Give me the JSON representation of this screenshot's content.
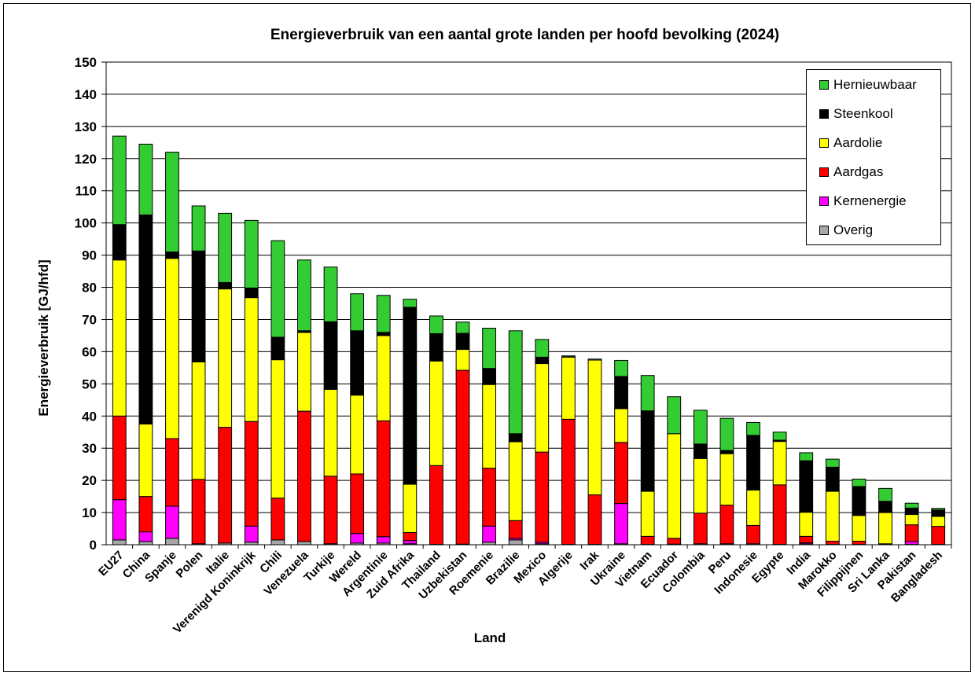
{
  "chart_data": {
    "type": "bar",
    "stacked": true,
    "title": "Energieverbruik van een aantal grote landen per hoofd bevolking (2024)",
    "xlabel": "Land",
    "ylabel": "Energieverbruik  [GJ/hfd]",
    "ylim": [
      0,
      150
    ],
    "yticks": [
      0,
      10,
      20,
      30,
      40,
      50,
      60,
      70,
      80,
      90,
      100,
      110,
      120,
      130,
      140,
      150
    ],
    "grid": "horizontal",
    "legend_position": "top-right",
    "categories": [
      "EU27",
      "China",
      "Spanje",
      "Polen",
      "Italie",
      "Verenigd Koninkrijk",
      "Chili",
      "Venezuela",
      "Turkije",
      "Wereld",
      "Argentinie",
      "Zuid Afrika",
      "Thailand",
      "Uzbekistan",
      "Roemenie",
      "Brazilie",
      "Mexico",
      "Algerije",
      "Irak",
      "Ukraine",
      "Vietnam",
      "Ecuador",
      "Colombia",
      "Peru",
      "Indonesie",
      "Egypte",
      "India",
      "Marokko",
      "Filippijnen",
      "Sri Lanka",
      "Pakistan",
      "Bangladesh"
    ],
    "series": [
      {
        "name": "Overig",
        "color": "#a6a6a6",
        "values": [
          1.5,
          1.0,
          2.0,
          0.3,
          0.5,
          0.8,
          1.5,
          1.0,
          0.3,
          0.5,
          0.5,
          0.3,
          0.1,
          0.2,
          0.8,
          1.5,
          0.3,
          0.1,
          0.1,
          0.3,
          0.1,
          0.2,
          0.3,
          0.3,
          0.3,
          0.1,
          0.3,
          0.1,
          0.1,
          0.1,
          0.1,
          0.1
        ]
      },
      {
        "name": "Kernenergie",
        "color": "#ff00ff",
        "values": [
          12.5,
          3.0,
          10.0,
          0,
          0,
          5.0,
          0,
          0,
          0,
          3.0,
          2.0,
          1.0,
          0,
          0,
          5.0,
          0.5,
          0.5,
          0,
          0,
          12.5,
          0,
          0,
          0,
          0,
          0,
          0,
          0.3,
          0,
          0,
          0,
          0.9,
          0
        ]
      },
      {
        "name": "Aardgas",
        "color": "#ff0000",
        "values": [
          26.0,
          11.0,
          21.0,
          20.0,
          36.0,
          32.5,
          13.0,
          40.5,
          21.0,
          18.5,
          36.0,
          2.5,
          24.5,
          54.0,
          18.0,
          5.5,
          28.0,
          38.9,
          15.4,
          19.0,
          2.5,
          1.8,
          9.5,
          12.0,
          5.7,
          18.5,
          2.0,
          1.0,
          1.0,
          0.2,
          5.2,
          5.6
        ]
      },
      {
        "name": "Aardolie",
        "color": "#ffff00",
        "values": [
          48.5,
          22.5,
          56.0,
          36.5,
          43.0,
          38.5,
          43.0,
          24.5,
          27.0,
          24.5,
          26.5,
          15.0,
          32.5,
          6.5,
          26.0,
          24.5,
          27.5,
          19.3,
          41.9,
          10.5,
          14.0,
          32.5,
          17.0,
          16.0,
          11.0,
          13.5,
          7.5,
          15.5,
          8.0,
          9.7,
          3.2,
          3.1
        ]
      },
      {
        "name": "Steenkool",
        "color": "#000000",
        "values": [
          11.0,
          65.0,
          2.0,
          34.5,
          2.0,
          3.0,
          7.0,
          0.5,
          21.0,
          20.0,
          1.0,
          55.0,
          8.5,
          5.0,
          5.0,
          2.5,
          2.0,
          0.1,
          0,
          10.0,
          25.0,
          0,
          4.5,
          1.0,
          17.0,
          0.4,
          16.0,
          7.5,
          9.0,
          3.5,
          2.0,
          2.0
        ]
      },
      {
        "name": "Hernieuwbaar",
        "color": "#33cc33",
        "values": [
          27.5,
          22.0,
          31.0,
          14.0,
          21.5,
          21.0,
          30.0,
          22.0,
          17.0,
          11.5,
          11.5,
          2.5,
          5.5,
          3.5,
          12.5,
          32.0,
          5.5,
          0.3,
          0.3,
          5.0,
          11.0,
          11.5,
          10.5,
          10.0,
          4.0,
          2.5,
          2.5,
          2.5,
          2.3,
          4.0,
          1.5,
          0.5
        ]
      }
    ],
    "legend_labels": [
      "Hernieuwbaar",
      "Steenkool",
      "Aardolie",
      "Aardgas",
      "Kernenergie",
      "Overig"
    ]
  }
}
